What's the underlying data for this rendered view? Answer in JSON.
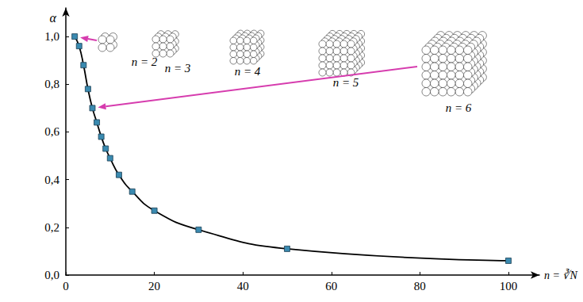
{
  "chart_data": {
    "type": "line",
    "xlabel": "n = ∛N",
    "ylabel": "α",
    "x": [
      2,
      3,
      4,
      5,
      6,
      7,
      8,
      9,
      10,
      12,
      15,
      20,
      30,
      50,
      100
    ],
    "values": [
      1.0,
      0.96,
      0.88,
      0.78,
      0.7,
      0.64,
      0.58,
      0.53,
      0.49,
      0.42,
      0.35,
      0.27,
      0.19,
      0.11,
      0.06
    ],
    "color": "#3a8ab0",
    "marker": "square",
    "line_style": "solid",
    "grid": false,
    "xlim": [
      0,
      107
    ],
    "xticks": [
      0,
      20,
      40,
      60,
      80,
      100
    ],
    "ylim": [
      0,
      1.12
    ],
    "yticks": [
      {
        "value": 0,
        "label": "0,0"
      },
      {
        "value": 0.2,
        "label": "0,2"
      },
      {
        "value": 0.4,
        "label": "0,4"
      },
      {
        "value": 0.6,
        "label": "0,6"
      },
      {
        "value": 0.8,
        "label": "0,8"
      },
      {
        "value": 1.0,
        "label": "1,0"
      }
    ],
    "annotations": [
      {
        "text": "n = 2",
        "x": 2
      },
      {
        "text": "n = 3",
        "x": 3
      },
      {
        "text": "n = 4",
        "x": 4
      },
      {
        "text": "n = 5",
        "x": 5
      },
      {
        "text": "n = 6",
        "x": 6
      }
    ]
  }
}
